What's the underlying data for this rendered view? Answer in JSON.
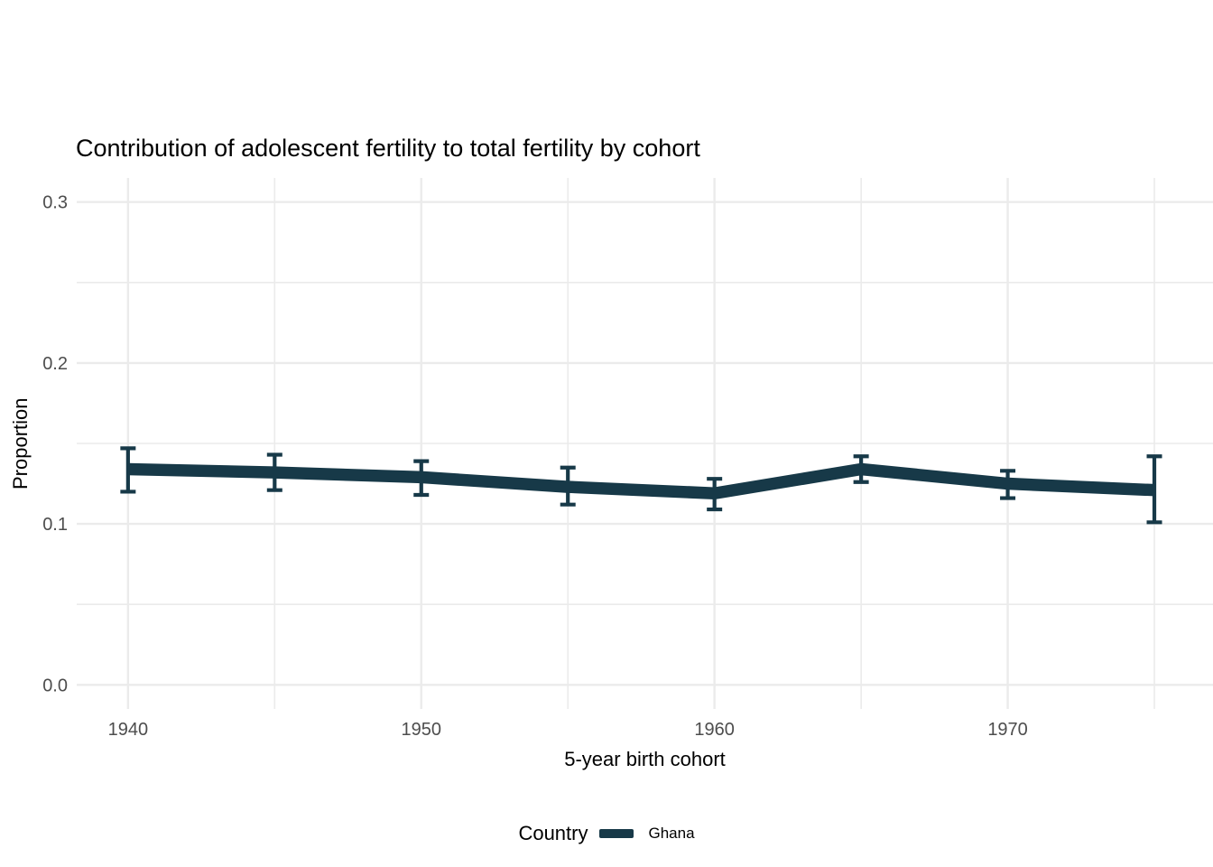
{
  "chart_data": {
    "type": "line",
    "title": "Contribution of adolescent fertility to total fertility by cohort",
    "xlabel": "5-year birth cohort",
    "ylabel": "Proportion",
    "legend_title": "Country",
    "legend_position": "bottom",
    "grid": true,
    "xlim": [
      1938.25,
      1977
    ],
    "ylim": [
      -0.015,
      0.315
    ],
    "x_ticks": [
      {
        "value": 1940,
        "label": "1940"
      },
      {
        "value": 1950,
        "label": "1950"
      },
      {
        "value": 1960,
        "label": "1960"
      },
      {
        "value": 1970,
        "label": "1970"
      }
    ],
    "x_minor_ticks": [
      1945,
      1955,
      1965,
      1975
    ],
    "y_ticks": [
      {
        "value": 0.0,
        "label": "0.0"
      },
      {
        "value": 0.1,
        "label": "0.1"
      },
      {
        "value": 0.2,
        "label": "0.2"
      },
      {
        "value": 0.3,
        "label": "0.3"
      }
    ],
    "y_minor_ticks": [
      0.05,
      0.15,
      0.25
    ],
    "series": [
      {
        "name": "Ghana",
        "color": "#173948",
        "x": [
          1940,
          1945,
          1950,
          1955,
          1960,
          1965,
          1970,
          1975
        ],
        "values": [
          0.134,
          0.132,
          0.129,
          0.123,
          0.119,
          0.134,
          0.125,
          0.121
        ],
        "ci_lower": [
          0.12,
          0.121,
          0.118,
          0.112,
          0.109,
          0.126,
          0.116,
          0.101
        ],
        "ci_upper": [
          0.147,
          0.143,
          0.139,
          0.135,
          0.128,
          0.142,
          0.133,
          0.142
        ]
      }
    ]
  },
  "colors": {
    "grid": "#ebebeb",
    "axis_text": "#4d4d4d",
    "text": "#000000",
    "background": "#ffffff"
  }
}
